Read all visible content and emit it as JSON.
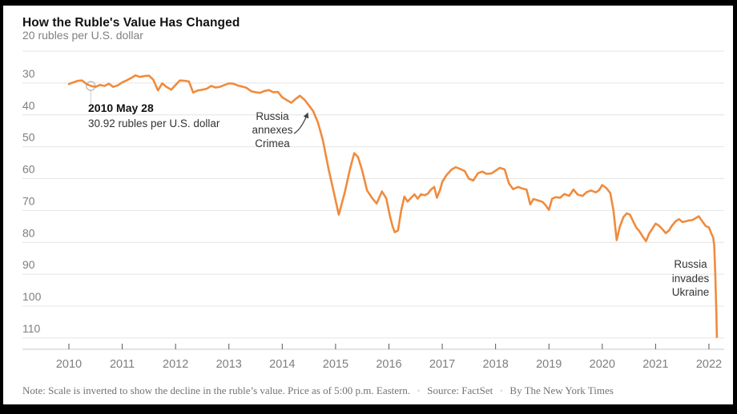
{
  "header": {
    "title": "How the Ruble's Value Has Changed",
    "subtitle": "20 rubles per U.S. dollar"
  },
  "annotations": {
    "marker_date": "2010 May 28",
    "marker_value": "30.92 rubles per U.S. dollar",
    "crimea": "Russia\nannexes\nCrimea",
    "ukraine": "Russia\ninvades\nUkraine"
  },
  "footer": {
    "note": "Note: Scale is inverted to show the decline in the ruble’s value. Price as of 5:00 p.m. Eastern.",
    "source": "Source: FactSet",
    "byline": "By The New York Times",
    "separator": "•"
  },
  "colors": {
    "line": "#f08b3d",
    "grid": "#e4e4e4",
    "axis": "#c9c9c9",
    "tick": "#555555",
    "label": "#7e7e7e",
    "title": "#121212",
    "annotation": "#333333",
    "marker_ring": "#bfbfbf",
    "arrow": "#444444"
  },
  "chart_data": {
    "type": "line",
    "title": "How the Ruble's Value Has Changed",
    "ylabel": "rubles per U.S. dollar",
    "y_axis": {
      "ticks": [
        20,
        30,
        40,
        50,
        60,
        70,
        80,
        90,
        100,
        110
      ],
      "range": [
        20,
        110
      ],
      "inverted": true,
      "grid": true
    },
    "x_axis": {
      "ticks": [
        2010,
        2011,
        2012,
        2013,
        2014,
        2015,
        2016,
        2017,
        2018,
        2019,
        2020,
        2021,
        2022
      ]
    },
    "marked_point": {
      "x": 2010.41,
      "y": 30.92,
      "date_label": "2010 May 28",
      "value_label": "30.92 rubles per U.S. dollar"
    },
    "events": [
      {
        "label": "Russia annexes Crimea",
        "x": 2014.2
      },
      {
        "label": "Russia invades Ukraine",
        "x": 2022.15
      }
    ],
    "series": [
      {
        "name": "Rubles per U.S. dollar",
        "points": [
          [
            2010.0,
            30.3
          ],
          [
            2010.08,
            29.8
          ],
          [
            2010.17,
            29.3
          ],
          [
            2010.25,
            29.2
          ],
          [
            2010.33,
            30.3
          ],
          [
            2010.41,
            30.92
          ],
          [
            2010.5,
            31.2
          ],
          [
            2010.58,
            30.6
          ],
          [
            2010.67,
            30.9
          ],
          [
            2010.75,
            30.2
          ],
          [
            2010.83,
            31.2
          ],
          [
            2010.92,
            30.7
          ],
          [
            2011.0,
            29.8
          ],
          [
            2011.08,
            29.2
          ],
          [
            2011.17,
            28.4
          ],
          [
            2011.25,
            27.6
          ],
          [
            2011.33,
            28.1
          ],
          [
            2011.42,
            27.8
          ],
          [
            2011.5,
            27.7
          ],
          [
            2011.58,
            28.9
          ],
          [
            2011.67,
            32.3
          ],
          [
            2011.75,
            30.1
          ],
          [
            2011.83,
            31.2
          ],
          [
            2011.92,
            32.1
          ],
          [
            2012.0,
            30.6
          ],
          [
            2012.08,
            29.2
          ],
          [
            2012.17,
            29.3
          ],
          [
            2012.25,
            29.5
          ],
          [
            2012.33,
            33.0
          ],
          [
            2012.42,
            32.3
          ],
          [
            2012.5,
            32.1
          ],
          [
            2012.58,
            31.8
          ],
          [
            2012.67,
            30.9
          ],
          [
            2012.75,
            31.4
          ],
          [
            2012.83,
            31.2
          ],
          [
            2012.92,
            30.6
          ],
          [
            2013.0,
            30.1
          ],
          [
            2013.08,
            30.2
          ],
          [
            2013.17,
            30.8
          ],
          [
            2013.25,
            31.1
          ],
          [
            2013.33,
            31.5
          ],
          [
            2013.42,
            32.6
          ],
          [
            2013.5,
            32.9
          ],
          [
            2013.58,
            33.1
          ],
          [
            2013.67,
            32.5
          ],
          [
            2013.75,
            32.2
          ],
          [
            2013.83,
            32.9
          ],
          [
            2013.92,
            32.8
          ],
          [
            2014.0,
            34.5
          ],
          [
            2014.08,
            35.3
          ],
          [
            2014.17,
            36.2
          ],
          [
            2014.25,
            35.0
          ],
          [
            2014.33,
            34.0
          ],
          [
            2014.42,
            35.3
          ],
          [
            2014.5,
            37.0
          ],
          [
            2014.58,
            38.8
          ],
          [
            2014.67,
            42.4
          ],
          [
            2014.76,
            47.8
          ],
          [
            2014.87,
            57.0
          ],
          [
            2014.97,
            64.5
          ],
          [
            2015.06,
            71.3
          ],
          [
            2015.17,
            64.5
          ],
          [
            2015.27,
            57.0
          ],
          [
            2015.35,
            52.0
          ],
          [
            2015.42,
            53.2
          ],
          [
            2015.5,
            57.5
          ],
          [
            2015.59,
            63.7
          ],
          [
            2015.69,
            66.2
          ],
          [
            2015.77,
            67.8
          ],
          [
            2015.87,
            64.0
          ],
          [
            2015.95,
            66.2
          ],
          [
            2016.02,
            71.8
          ],
          [
            2016.07,
            75.0
          ],
          [
            2016.11,
            76.8
          ],
          [
            2016.17,
            76.3
          ],
          [
            2016.23,
            70.0
          ],
          [
            2016.29,
            65.6
          ],
          [
            2016.35,
            67.2
          ],
          [
            2016.42,
            66.0
          ],
          [
            2016.48,
            64.9
          ],
          [
            2016.54,
            66.3
          ],
          [
            2016.6,
            64.9
          ],
          [
            2016.67,
            65.2
          ],
          [
            2016.73,
            64.7
          ],
          [
            2016.79,
            63.4
          ],
          [
            2016.85,
            62.6
          ],
          [
            2016.9,
            66.0
          ],
          [
            2016.96,
            63.5
          ],
          [
            2017.0,
            61.0
          ],
          [
            2017.08,
            58.9
          ],
          [
            2017.17,
            57.2
          ],
          [
            2017.25,
            56.4
          ],
          [
            2017.33,
            56.9
          ],
          [
            2017.42,
            57.6
          ],
          [
            2017.5,
            60.0
          ],
          [
            2017.58,
            60.6
          ],
          [
            2017.67,
            58.3
          ],
          [
            2017.75,
            57.8
          ],
          [
            2017.83,
            58.5
          ],
          [
            2017.92,
            58.4
          ],
          [
            2018.0,
            57.5
          ],
          [
            2018.08,
            56.6
          ],
          [
            2018.17,
            57.1
          ],
          [
            2018.25,
            61.5
          ],
          [
            2018.33,
            63.3
          ],
          [
            2018.42,
            62.6
          ],
          [
            2018.5,
            63.1
          ],
          [
            2018.58,
            63.4
          ],
          [
            2018.65,
            68.1
          ],
          [
            2018.71,
            66.4
          ],
          [
            2018.79,
            66.8
          ],
          [
            2018.88,
            67.3
          ],
          [
            2018.94,
            68.4
          ],
          [
            2019.0,
            69.8
          ],
          [
            2019.06,
            66.3
          ],
          [
            2019.13,
            65.8
          ],
          [
            2019.21,
            66.0
          ],
          [
            2019.29,
            64.8
          ],
          [
            2019.38,
            65.4
          ],
          [
            2019.46,
            63.4
          ],
          [
            2019.54,
            65.0
          ],
          [
            2019.63,
            65.4
          ],
          [
            2019.71,
            64.2
          ],
          [
            2019.79,
            63.7
          ],
          [
            2019.88,
            64.3
          ],
          [
            2019.94,
            63.6
          ],
          [
            2020.0,
            62.0
          ],
          [
            2020.08,
            63.0
          ],
          [
            2020.15,
            64.5
          ],
          [
            2020.21,
            70.0
          ],
          [
            2020.27,
            79.3
          ],
          [
            2020.33,
            75.0
          ],
          [
            2020.4,
            72.0
          ],
          [
            2020.46,
            70.9
          ],
          [
            2020.52,
            71.3
          ],
          [
            2020.58,
            73.4
          ],
          [
            2020.64,
            75.4
          ],
          [
            2020.7,
            76.6
          ],
          [
            2020.76,
            78.2
          ],
          [
            2020.82,
            79.6
          ],
          [
            2020.88,
            77.2
          ],
          [
            2020.94,
            75.7
          ],
          [
            2021.0,
            74.1
          ],
          [
            2021.06,
            74.7
          ],
          [
            2021.13,
            75.9
          ],
          [
            2021.19,
            77.1
          ],
          [
            2021.25,
            76.3
          ],
          [
            2021.31,
            74.7
          ],
          [
            2021.38,
            73.3
          ],
          [
            2021.44,
            72.7
          ],
          [
            2021.5,
            73.6
          ],
          [
            2021.56,
            73.4
          ],
          [
            2021.63,
            73.1
          ],
          [
            2021.69,
            73.0
          ],
          [
            2021.75,
            72.4
          ],
          [
            2021.81,
            71.8
          ],
          [
            2021.88,
            73.5
          ],
          [
            2021.94,
            74.9
          ],
          [
            2022.0,
            75.3
          ],
          [
            2022.04,
            77.0
          ],
          [
            2022.08,
            78.5
          ],
          [
            2022.1,
            81.0
          ],
          [
            2022.12,
            90.0
          ],
          [
            2022.14,
            103.0
          ],
          [
            2022.15,
            109.7
          ]
        ]
      }
    ]
  }
}
